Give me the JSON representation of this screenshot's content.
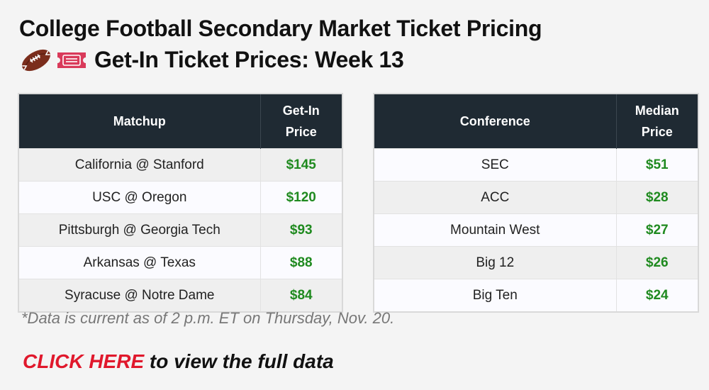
{
  "header": {
    "title": "College Football Secondary Market Ticket Pricing",
    "subtitle": "Get-In Ticket Prices: Week 13",
    "icons": [
      "football-icon",
      "ticket-icon"
    ],
    "colors": {
      "football": "#7b2d1c",
      "ticket": "#d93a5a"
    }
  },
  "matchup_table": {
    "headers": [
      "Matchup",
      "Get-In Price"
    ],
    "rows": [
      {
        "matchup": "California @ Stanford",
        "price": "$145"
      },
      {
        "matchup": "USC @ Oregon",
        "price": "$120"
      },
      {
        "matchup": "Pittsburgh @ Georgia Tech",
        "price": "$93"
      },
      {
        "matchup": "Arkansas @ Texas",
        "price": "$88"
      },
      {
        "matchup": "Syracuse @ Notre Dame",
        "price": "$84"
      }
    ]
  },
  "conference_table": {
    "headers": [
      "Conference",
      "Median Price"
    ],
    "rows": [
      {
        "conference": "SEC",
        "price": "$51"
      },
      {
        "conference": "ACC",
        "price": "$28"
      },
      {
        "conference": "Mountain West",
        "price": "$27"
      },
      {
        "conference": "Big 12",
        "price": "$26"
      },
      {
        "conference": "Big Ten",
        "price": "$24"
      }
    ]
  },
  "footnote": "*Data is current as of 2 p.m. ET on Thursday, Nov. 20.",
  "cta": {
    "link_text": "CLICK HERE",
    "rest_text": " to view the full data",
    "link_color": "#e0182c"
  },
  "colors": {
    "header_bg": "#1f2a33",
    "price_green": "#1f8a1f",
    "page_bg": "#f4f4f4"
  }
}
